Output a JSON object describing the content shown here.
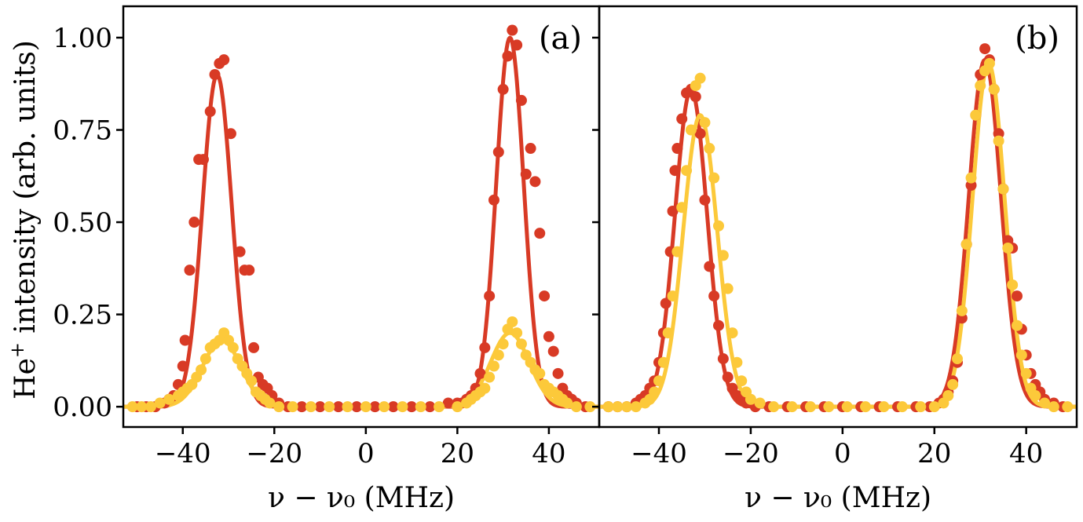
{
  "colors": {
    "red": "#d83a25",
    "yellow": "#fcc93a"
  },
  "axes": {
    "ylabel_main": "He",
    "ylabel_sup": "+",
    "ylabel_rest": " intensity (arb. units)",
    "xlabel_panels": [
      "ν − ν₀ (MHz)",
      "ν − ν₀ (MHz)"
    ],
    "xlim": [
      -53,
      51
    ],
    "ylim": [
      -0.055,
      1.085
    ],
    "xticks": [
      -40,
      -20,
      0,
      20,
      40
    ],
    "xtick_labels": [
      "−40",
      "−20",
      "0",
      "20",
      "40"
    ],
    "yticks": [
      0,
      0.25,
      0.5,
      0.75,
      1.0
    ],
    "ytick_labels": [
      "0.00",
      "0.25",
      "0.50",
      "0.75",
      "1.00"
    ]
  },
  "chart_data": [
    {
      "type": "scatter",
      "panel_label": "(a)",
      "series": [
        {
          "color": "#d83a25",
          "fit": {
            "peaks": [
              {
                "center": -32.5,
                "amplitude": 0.9,
                "sigma": 3.2
              },
              {
                "center": 31.5,
                "amplitude": 1.0,
                "sigma": 3.0
              }
            ],
            "baseline": 0.0
          },
          "points": [
            [
              -50,
              0.0
            ],
            [
              -48,
              0.0
            ],
            [
              -46,
              0.0
            ],
            [
              -44,
              0.01
            ],
            [
              -43,
              0.02
            ],
            [
              -42,
              0.03
            ],
            [
              -41,
              0.06
            ],
            [
              -40,
              0.11
            ],
            [
              -39.5,
              0.18
            ],
            [
              -38.5,
              0.37
            ],
            [
              -37.5,
              0.5
            ],
            [
              -36.5,
              0.67
            ],
            [
              -35.5,
              0.67
            ],
            [
              -34,
              0.8
            ],
            [
              -33,
              0.9
            ],
            [
              -32,
              0.93
            ],
            [
              -31,
              0.94
            ],
            [
              -29.5,
              0.74
            ],
            [
              -27.5,
              0.42
            ],
            [
              -26.5,
              0.37
            ],
            [
              -25.5,
              0.37
            ],
            [
              -24.5,
              0.16
            ],
            [
              -23.5,
              0.08
            ],
            [
              -22.5,
              0.06
            ],
            [
              -21.5,
              0.05
            ],
            [
              -20.5,
              0.03
            ],
            [
              -19,
              0.01
            ],
            [
              -17,
              0.0
            ],
            [
              -14,
              0.0
            ],
            [
              -10,
              0.0
            ],
            [
              -6,
              0.0
            ],
            [
              -2,
              0.0
            ],
            [
              2,
              0.0
            ],
            [
              6,
              0.0
            ],
            [
              10,
              0.0
            ],
            [
              14,
              0.0
            ],
            [
              18,
              0.01
            ],
            [
              20,
              0.01
            ],
            [
              21,
              0.01
            ],
            [
              22,
              0.02
            ],
            [
              23,
              0.03
            ],
            [
              24,
              0.05
            ],
            [
              25,
              0.09
            ],
            [
              26,
              0.16
            ],
            [
              27,
              0.3
            ],
            [
              28,
              0.56
            ],
            [
              29,
              0.69
            ],
            [
              30,
              0.86
            ],
            [
              31,
              0.95
            ],
            [
              32,
              1.02
            ],
            [
              33,
              0.98
            ],
            [
              34,
              0.83
            ],
            [
              35,
              0.63
            ],
            [
              36,
              0.7
            ],
            [
              37,
              0.61
            ],
            [
              38,
              0.47
            ],
            [
              39,
              0.3
            ],
            [
              40,
              0.19
            ],
            [
              41,
              0.15
            ],
            [
              42,
              0.09
            ],
            [
              43,
              0.05
            ],
            [
              44,
              0.03
            ],
            [
              45,
              0.02
            ],
            [
              46,
              0.01
            ],
            [
              48,
              0.0
            ]
          ]
        },
        {
          "color": "#fcc93a",
          "fit": {
            "peaks": [
              {
                "center": -31.5,
                "amplitude": 0.18,
                "sigma": 4.2
              },
              {
                "center": 31.5,
                "amplitude": 0.2,
                "sigma": 4.2
              }
            ],
            "baseline": 0.0
          },
          "points": [
            [
              -51,
              0.0
            ],
            [
              -49,
              0.0
            ],
            [
              -47,
              0.0
            ],
            [
              -45,
              0.01
            ],
            [
              -43,
              0.02
            ],
            [
              -41,
              0.03
            ],
            [
              -40,
              0.04
            ],
            [
              -39,
              0.05
            ],
            [
              -38,
              0.06
            ],
            [
              -37,
              0.08
            ],
            [
              -36,
              0.1
            ],
            [
              -35,
              0.13
            ],
            [
              -34,
              0.16
            ],
            [
              -33,
              0.17
            ],
            [
              -32,
              0.18
            ],
            [
              -31,
              0.2
            ],
            [
              -30,
              0.18
            ],
            [
              -29,
              0.16
            ],
            [
              -28,
              0.13
            ],
            [
              -27,
              0.11
            ],
            [
              -26,
              0.09
            ],
            [
              -25,
              0.07
            ],
            [
              -24,
              0.04
            ],
            [
              -23,
              0.03
            ],
            [
              -22,
              0.02
            ],
            [
              -21,
              0.01
            ],
            [
              -19,
              0.0
            ],
            [
              -16,
              0.0
            ],
            [
              -12,
              0.0
            ],
            [
              -8,
              0.0
            ],
            [
              -4,
              0.0
            ],
            [
              0,
              0.0
            ],
            [
              4,
              0.0
            ],
            [
              8,
              0.0
            ],
            [
              12,
              0.0
            ],
            [
              16,
              0.0
            ],
            [
              20,
              0.0
            ],
            [
              22,
              0.01
            ],
            [
              23,
              0.02
            ],
            [
              24,
              0.03
            ],
            [
              25,
              0.04
            ],
            [
              26,
              0.05
            ],
            [
              27,
              0.08
            ],
            [
              28,
              0.11
            ],
            [
              29,
              0.14
            ],
            [
              30,
              0.17
            ],
            [
              31,
              0.21
            ],
            [
              32,
              0.23
            ],
            [
              33,
              0.2
            ],
            [
              34,
              0.17
            ],
            [
              35,
              0.14
            ],
            [
              36,
              0.12
            ],
            [
              37,
              0.1
            ],
            [
              38,
              0.09
            ],
            [
              39,
              0.06
            ],
            [
              40,
              0.05
            ],
            [
              41,
              0.04
            ],
            [
              42,
              0.03
            ],
            [
              43,
              0.02
            ],
            [
              44,
              0.01
            ],
            [
              46,
              0.0
            ],
            [
              49,
              0.0
            ]
          ]
        }
      ]
    },
    {
      "type": "scatter",
      "panel_label": "(b)",
      "series": [
        {
          "color": "#d83a25",
          "fit": {
            "peaks": [
              {
                "center": -33.0,
                "amplitude": 0.86,
                "sigma": 3.5
              },
              {
                "center": 31.0,
                "amplitude": 0.94,
                "sigma": 3.5
              }
            ],
            "baseline": 0.0
          },
          "points": [
            [
              -51,
              0.0
            ],
            [
              -49,
              0.0
            ],
            [
              -47,
              0.0
            ],
            [
              -45,
              0.01
            ],
            [
              -44,
              0.02
            ],
            [
              -43,
              0.03
            ],
            [
              -42,
              0.05
            ],
            [
              -41,
              0.07
            ],
            [
              -40,
              0.12
            ],
            [
              -39,
              0.2
            ],
            [
              -38.5,
              0.28
            ],
            [
              -37.5,
              0.42
            ],
            [
              -37,
              0.53
            ],
            [
              -36.5,
              0.64
            ],
            [
              -36,
              0.7
            ],
            [
              -35,
              0.78
            ],
            [
              -34,
              0.85
            ],
            [
              -33,
              0.86
            ],
            [
              -32,
              0.84
            ],
            [
              -31,
              0.74
            ],
            [
              -30,
              0.56
            ],
            [
              -29,
              0.38
            ],
            [
              -28,
              0.3
            ],
            [
              -27,
              0.22
            ],
            [
              -26,
              0.13
            ],
            [
              -25,
              0.08
            ],
            [
              -24,
              0.05
            ],
            [
              -23,
              0.03
            ],
            [
              -22,
              0.02
            ],
            [
              -21,
              0.01
            ],
            [
              -19,
              0.0
            ],
            [
              -16,
              0.0
            ],
            [
              -12,
              0.0
            ],
            [
              -8,
              0.0
            ],
            [
              -4,
              0.0
            ],
            [
              0,
              0.0
            ],
            [
              4,
              0.0
            ],
            [
              8,
              0.0
            ],
            [
              12,
              0.0
            ],
            [
              16,
              0.0
            ],
            [
              19,
              0.0
            ],
            [
              21,
              0.01
            ],
            [
              22,
              0.02
            ],
            [
              23,
              0.04
            ],
            [
              24,
              0.07
            ],
            [
              25,
              0.12
            ],
            [
              26,
              0.24
            ],
            [
              27,
              0.44
            ],
            [
              28,
              0.6
            ],
            [
              29,
              0.79
            ],
            [
              30,
              0.9
            ],
            [
              31,
              0.97
            ],
            [
              32,
              0.94
            ],
            [
              33,
              0.86
            ],
            [
              34,
              0.74
            ],
            [
              35,
              0.59
            ],
            [
              36,
              0.45
            ],
            [
              37,
              0.43
            ],
            [
              38,
              0.3
            ],
            [
              39,
              0.21
            ],
            [
              40,
              0.14
            ],
            [
              41,
              0.09
            ],
            [
              42,
              0.06
            ],
            [
              43,
              0.04
            ],
            [
              44,
              0.02
            ],
            [
              46,
              0.01
            ],
            [
              48,
              0.0
            ]
          ]
        },
        {
          "color": "#fcc93a",
          "fit": {
            "peaks": [
              {
                "center": -31.0,
                "amplitude": 0.79,
                "sigma": 3.7
              },
              {
                "center": 31.8,
                "amplitude": 0.93,
                "sigma": 3.5
              }
            ],
            "baseline": 0.0
          },
          "points": [
            [
              -51,
              0.0
            ],
            [
              -49,
              0.0
            ],
            [
              -47,
              0.0
            ],
            [
              -45,
              0.0
            ],
            [
              -43,
              0.01
            ],
            [
              -42,
              0.02
            ],
            [
              -41,
              0.04
            ],
            [
              -40,
              0.07
            ],
            [
              -39,
              0.12
            ],
            [
              -38,
              0.2
            ],
            [
              -37,
              0.3
            ],
            [
              -36,
              0.42
            ],
            [
              -35,
              0.54
            ],
            [
              -34,
              0.64
            ],
            [
              -33,
              0.75
            ],
            [
              -32,
              0.87
            ],
            [
              -31,
              0.89
            ],
            [
              -30,
              0.77
            ],
            [
              -29,
              0.7
            ],
            [
              -28,
              0.62
            ],
            [
              -27,
              0.49
            ],
            [
              -26,
              0.41
            ],
            [
              -25,
              0.32
            ],
            [
              -24,
              0.2
            ],
            [
              -23,
              0.12
            ],
            [
              -22,
              0.07
            ],
            [
              -21,
              0.04
            ],
            [
              -20,
              0.02
            ],
            [
              -18,
              0.01
            ],
            [
              -15,
              0.0
            ],
            [
              -11,
              0.0
            ],
            [
              -7,
              0.0
            ],
            [
              -3,
              0.0
            ],
            [
              1,
              0.0
            ],
            [
              5,
              0.0
            ],
            [
              9,
              0.0
            ],
            [
              13,
              0.0
            ],
            [
              17,
              0.0
            ],
            [
              20,
              0.0
            ],
            [
              22,
              0.01
            ],
            [
              23,
              0.03
            ],
            [
              24,
              0.06
            ],
            [
              25,
              0.13
            ],
            [
              26,
              0.26
            ],
            [
              27,
              0.44
            ],
            [
              28,
              0.62
            ],
            [
              29,
              0.79
            ],
            [
              30,
              0.87
            ],
            [
              31,
              0.91
            ],
            [
              32,
              0.93
            ],
            [
              33,
              0.86
            ],
            [
              34,
              0.72
            ],
            [
              35,
              0.59
            ],
            [
              36,
              0.43
            ],
            [
              37,
              0.33
            ],
            [
              38,
              0.22
            ],
            [
              39,
              0.14
            ],
            [
              40,
              0.09
            ],
            [
              41,
              0.05
            ],
            [
              42,
              0.03
            ],
            [
              44,
              0.01
            ],
            [
              46,
              0.0
            ],
            [
              49,
              0.0
            ]
          ]
        }
      ]
    }
  ]
}
